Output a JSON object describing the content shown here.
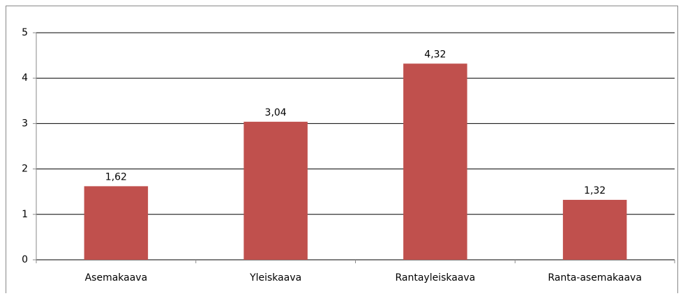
{
  "chart_data": {
    "type": "bar",
    "categories": [
      "Asemakaava",
      "Yleiskaava",
      "Rantayleiskaava",
      "Ranta-asemakaava"
    ],
    "values": [
      1.62,
      3.04,
      4.32,
      1.32
    ],
    "value_labels": [
      "1,62",
      "3,04",
      "4,32",
      "1,32"
    ],
    "color": "#c0504d",
    "ylim": [
      0,
      5
    ],
    "yticks": [
      0,
      1,
      2,
      3,
      4,
      5
    ],
    "grid": true
  }
}
